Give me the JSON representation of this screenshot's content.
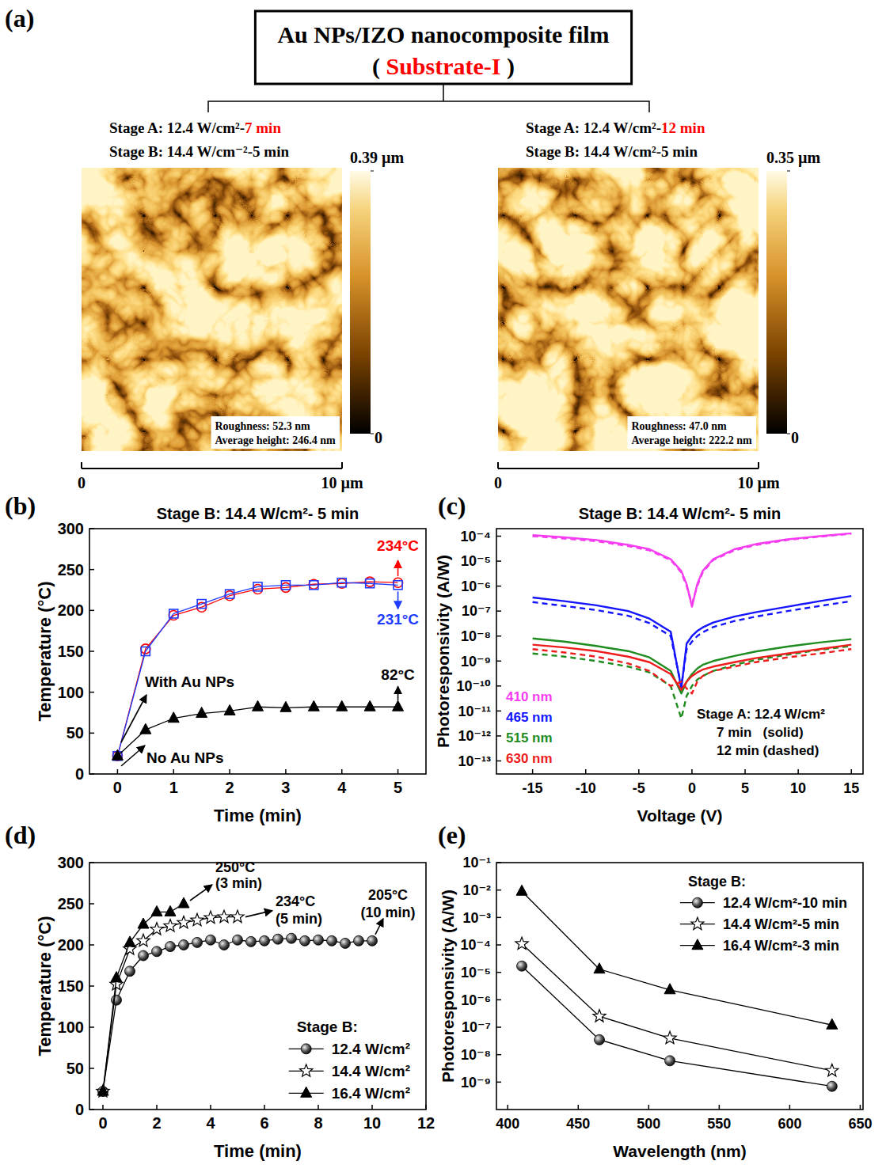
{
  "afm": {
    "panel": "(a)",
    "title": "Au NPs/IZO nanocomposite film",
    "subtitle": {
      "prefix": "( ",
      "highlight": "Substrate-I",
      "suffix": " )"
    },
    "highlight_color": "#ff0000",
    "images": [
      {
        "stage_a": {
          "text": "Stage A: 12.4 W/cm²-",
          "highlight": "7 min"
        },
        "stage_b": "Stage B: 14.4 W/cm⁻²-5 min",
        "colorbar": {
          "range": [
            0,
            0.39
          ],
          "ticks": [
            {
              "value": 0.39,
              "label": "0.39 µm"
            },
            {
              "value": 0,
              "label": "0"
            }
          ]
        },
        "roughness": "Roughness: 52.3 nm",
        "average_height": "Average height: 246.4 nm",
        "scale": {
          "range": [
            0,
            10
          ],
          "ticks": [
            {
              "value": 0,
              "label": "0"
            },
            {
              "value": 10,
              "label": "10 µm"
            }
          ]
        }
      },
      {
        "stage_a": {
          "text": "Stage A: 12.4 W/cm²-",
          "highlight": "12 min"
        },
        "stage_b": "Stage B: 14.4 W/cm²-5 min",
        "colorbar": {
          "range": [
            0,
            0.35
          ],
          "ticks": [
            {
              "value": 0.35,
              "label": "0.35 µm"
            },
            {
              "value": 0,
              "label": "0"
            }
          ]
        },
        "roughness": "Roughness: 47.0 nm",
        "average_height": "Average height: 222.2 nm",
        "scale": {
          "range": [
            0,
            10
          ],
          "ticks": [
            {
              "value": 0,
              "label": "0"
            },
            {
              "value": 10,
              "label": "10 µm"
            }
          ]
        }
      }
    ]
  },
  "chart_data": [
    {
      "type": "line",
      "panel": "(b)",
      "title": "Stage B: 14.4 W/cm²- 5 min",
      "x_label": "Time (min)",
      "y_label": "Temperature (°C)",
      "x": [
        0,
        0.5,
        1,
        1.5,
        2,
        2.5,
        3,
        3.5,
        4,
        4.5,
        5
      ],
      "xlim": [
        -0.5,
        5.5
      ],
      "xticks": [
        0,
        1,
        2,
        3,
        4,
        5
      ],
      "ylim": [
        0,
        300
      ],
      "yticks": [
        0,
        50,
        100,
        150,
        200,
        250,
        300
      ],
      "grid": false,
      "series": [
        {
          "color": "#ff0000",
          "marker": "circle-open",
          "values": [
            22,
            153,
            194,
            204,
            218,
            226,
            228,
            232,
            233,
            235,
            234
          ]
        },
        {
          "color": "#1f3cff",
          "marker": "square-open",
          "values": [
            22,
            150,
            196,
            208,
            220,
            229,
            231,
            231,
            234,
            233,
            231
          ]
        },
        {
          "color": "#000000",
          "marker": "triangle",
          "values": [
            22,
            54,
            68,
            74,
            77,
            82,
            81,
            82,
            82,
            82,
            82
          ]
        }
      ],
      "annotations": [
        {
          "text": "234°C",
          "color": "#ff0000"
        },
        {
          "text": "231°C",
          "color": "#1f3cff"
        },
        {
          "text": "82°C",
          "color": "#000000"
        },
        {
          "text": "With Au NPs",
          "color": "#000000"
        },
        {
          "text": "No Au NPs",
          "color": "#000000"
        }
      ]
    },
    {
      "type": "line",
      "panel": "(c)",
      "title": "Stage B: 14.4 W/cm²- 5 min",
      "x_label": "Voltage (V)",
      "y_label": "Photoresponsivity (A/W)",
      "log": "y",
      "x": [
        -15,
        -12,
        -9,
        -6,
        -4,
        -2,
        -1,
        -0.5,
        0,
        0.5,
        1,
        2,
        4,
        6,
        9,
        12,
        15
      ],
      "xlim": [
        -18.4,
        16.1
      ],
      "xticks": [
        -15,
        -10,
        -5,
        0,
        5,
        10,
        15
      ],
      "ylim": [
        3e-14,
        0.0002
      ],
      "yticks": [
        {
          "value": 1e-13,
          "label": "10⁻¹³"
        },
        {
          "value": 1e-12,
          "label": "10⁻¹²"
        },
        {
          "value": 1e-11,
          "label": "10⁻¹¹"
        },
        {
          "value": 1e-10,
          "label": "10⁻¹⁰"
        },
        {
          "value": 1e-09,
          "label": "10⁻⁹"
        },
        {
          "value": 1e-08,
          "label": "10⁻⁸"
        },
        {
          "value": 1e-07,
          "label": "10⁻⁷"
        },
        {
          "value": 1e-06,
          "label": "10⁻⁶"
        },
        {
          "value": 1e-05,
          "label": "10⁻⁵"
        },
        {
          "value": 0.0001,
          "label": "10⁻⁴"
        }
      ],
      "grid": false,
      "legend": "lower left",
      "series": [
        {
          "name": "410 nm",
          "color": "#f53cf0",
          "line_style": "solid",
          "values": [
            0.00011,
            9e-05,
            7e-05,
            4.5e-05,
            3e-05,
            1.2e-05,
            4e-06,
            1.2e-06,
            1.5e-07,
            1.2e-06,
            4e-06,
            1.2e-05,
            3e-05,
            4.8e-05,
            7.5e-05,
            0.0001,
            0.00013
          ]
        },
        {
          "color": "#f53cf0",
          "line_style": "dashed",
          "values": [
            0.0001,
            8e-05,
            6.3e-05,
            4e-05,
            2.7e-05,
            1.1e-05,
            3.5e-06,
            1e-06,
            2e-07,
            1e-06,
            3.5e-06,
            1.1e-05,
            2.7e-05,
            4.4e-05,
            7e-05,
            9.5e-05,
            0.000125
          ]
        },
        {
          "name": "465 nm",
          "color": "#1414ff",
          "line_style": "solid",
          "values": [
            3.5e-07,
            2.5e-07,
            1.7e-07,
            1e-07,
            5e-08,
            1.5e-08,
            8e-11,
            5e-09,
            1e-08,
            1.6e-08,
            2.2e-08,
            3.5e-08,
            6e-08,
            9e-08,
            1.5e-07,
            2.5e-07,
            4e-07
          ]
        },
        {
          "color": "#1414ff",
          "line_style": "dashed",
          "values": [
            2.3e-07,
            1.6e-07,
            1.1e-07,
            6.5e-08,
            3.3e-08,
            1e-08,
            1e-10,
            3e-09,
            6e-09,
            1e-08,
            1.4e-08,
            2.3e-08,
            4e-08,
            6e-08,
            1e-07,
            1.6e-07,
            2.5e-07
          ]
        },
        {
          "name": "515 nm",
          "color": "#1e8c1e",
          "line_style": "solid",
          "values": [
            8e-09,
            6e-09,
            4e-09,
            2.5e-09,
            1.4e-09,
            4e-10,
            5e-11,
            1.5e-10,
            3e-10,
            5e-10,
            7e-10,
            1e-09,
            1.6e-09,
            2.4e-09,
            3.8e-09,
            5.5e-09,
            7.5e-09
          ]
        },
        {
          "color": "#1e8c1e",
          "line_style": "dashed",
          "values": [
            2e-09,
            1.5e-09,
            1e-09,
            6e-10,
            3.5e-10,
            1e-10,
            5e-12,
            4e-11,
            1e-10,
            1.8e-10,
            2.5e-10,
            4e-10,
            7e-10,
            1.1e-09,
            1.8e-09,
            2.8e-09,
            4e-09
          ]
        },
        {
          "name": "630 nm",
          "color": "#ee1c1c",
          "line_style": "solid",
          "values": [
            4.5e-09,
            3.5e-09,
            2.5e-09,
            1.5e-09,
            9e-10,
            3e-10,
            7e-11,
            1.5e-10,
            2.5e-10,
            3.5e-10,
            4.5e-10,
            6e-10,
            9e-10,
            1.3e-09,
            2e-09,
            3e-09,
            4.5e-09
          ]
        },
        {
          "color": "#ee1c1c",
          "line_style": "dashed",
          "values": [
            3e-09,
            2.2e-09,
            1.5e-09,
            8e-10,
            4e-10,
            1e-10,
            1.5e-10,
            8e-11,
            5e-11,
            1.5e-10,
            2.5e-10,
            4e-10,
            6e-10,
            9e-10,
            1.4e-09,
            2e-09,
            3e-09
          ]
        }
      ],
      "annotations": [
        {
          "text": "Stage A: 12.4 W/cm²"
        },
        {
          "text": "7 min   (solid)"
        },
        {
          "text": "12 min (dashed)"
        }
      ]
    },
    {
      "type": "line",
      "panel": "(d)",
      "x_label": "Time (min)",
      "y_label": "Temperature (°C)",
      "xlim": [
        -0.5,
        12
      ],
      "xticks": [
        0,
        2,
        4,
        6,
        8,
        10,
        12
      ],
      "ylim": [
        0,
        300
      ],
      "yticks": [
        0,
        50,
        100,
        150,
        200,
        250,
        300
      ],
      "grid": false,
      "legend": "lower right",
      "legend_title": "Stage B:",
      "series": [
        {
          "name": "12.4 W/cm²",
          "color": "#000000",
          "marker": "sphere",
          "x": [
            0,
            0.5,
            1,
            1.5,
            2,
            2.5,
            3,
            3.5,
            4,
            4.5,
            5,
            5.5,
            6,
            6.5,
            7,
            7.5,
            8,
            8.5,
            9,
            9.5,
            10
          ],
          "values": [
            22,
            133,
            168,
            187,
            192,
            198,
            200,
            203,
            206,
            200,
            206,
            204,
            205,
            207,
            208,
            205,
            206,
            205,
            202,
            205,
            205
          ]
        },
        {
          "name": "14.4 W/cm²",
          "color": "#000000",
          "marker": "star-open",
          "x": [
            0,
            0.5,
            1,
            1.5,
            2,
            2.5,
            3,
            3.5,
            4,
            4.5,
            5
          ],
          "values": [
            22,
            152,
            195,
            205,
            219,
            223,
            227,
            230,
            233,
            234,
            234
          ]
        },
        {
          "name": "16.4 W/cm²",
          "color": "#000000",
          "marker": "triangle",
          "x": [
            0,
            0.5,
            1,
            1.5,
            2,
            2.5,
            3
          ],
          "values": [
            22,
            160,
            203,
            225,
            240,
            240,
            250
          ]
        }
      ],
      "annotations": [
        {
          "text": [
            "250°C",
            "(3 min)"
          ]
        },
        {
          "text": [
            "234°C",
            "(5 min)"
          ]
        },
        {
          "text": [
            "205°C",
            "(10 min)"
          ]
        }
      ]
    },
    {
      "type": "line",
      "panel": "(e)",
      "x_label": "Wavelength (nm)",
      "y_label": "Photoresponsivity (A/W)",
      "log": "y",
      "x": [
        410,
        465,
        515,
        630
      ],
      "xlim": [
        392,
        652
      ],
      "xticks": [
        400,
        450,
        500,
        550,
        600,
        650
      ],
      "ylim": [
        1e-10,
        0.1
      ],
      "yticks": [
        {
          "value": 0.1,
          "label": "10⁻¹"
        },
        {
          "value": 0.01,
          "label": "10⁻²"
        },
        {
          "value": 0.001,
          "label": "10⁻³"
        },
        {
          "value": 0.0001,
          "label": "10⁻⁴"
        },
        {
          "value": 1e-05,
          "label": "10⁻⁵"
        },
        {
          "value": 1e-06,
          "label": "10⁻⁶"
        },
        {
          "value": 1e-07,
          "label": "10⁻⁷"
        },
        {
          "value": 1e-08,
          "label": "10⁻⁸"
        },
        {
          "value": 1e-09,
          "label": "10⁻⁹"
        }
      ],
      "grid": false,
      "legend": "upper right",
      "legend_title": "Stage B:",
      "series": [
        {
          "name": "12.4 W/cm²-10 min",
          "color": "#000000",
          "marker": "sphere",
          "values": [
            1.7e-05,
            3.5e-08,
            6e-09,
            7e-10
          ]
        },
        {
          "name": "14.4 W/cm²-5 min",
          "color": "#000000",
          "marker": "star-open",
          "values": [
            0.00011,
            2.5e-07,
            4e-08,
            2.6e-09
          ]
        },
        {
          "name": "16.4 W/cm²-3 min",
          "color": "#000000",
          "marker": "triangle",
          "values": [
            0.009,
            1.3e-05,
            2.3e-06,
            1.2e-07
          ]
        }
      ]
    }
  ]
}
